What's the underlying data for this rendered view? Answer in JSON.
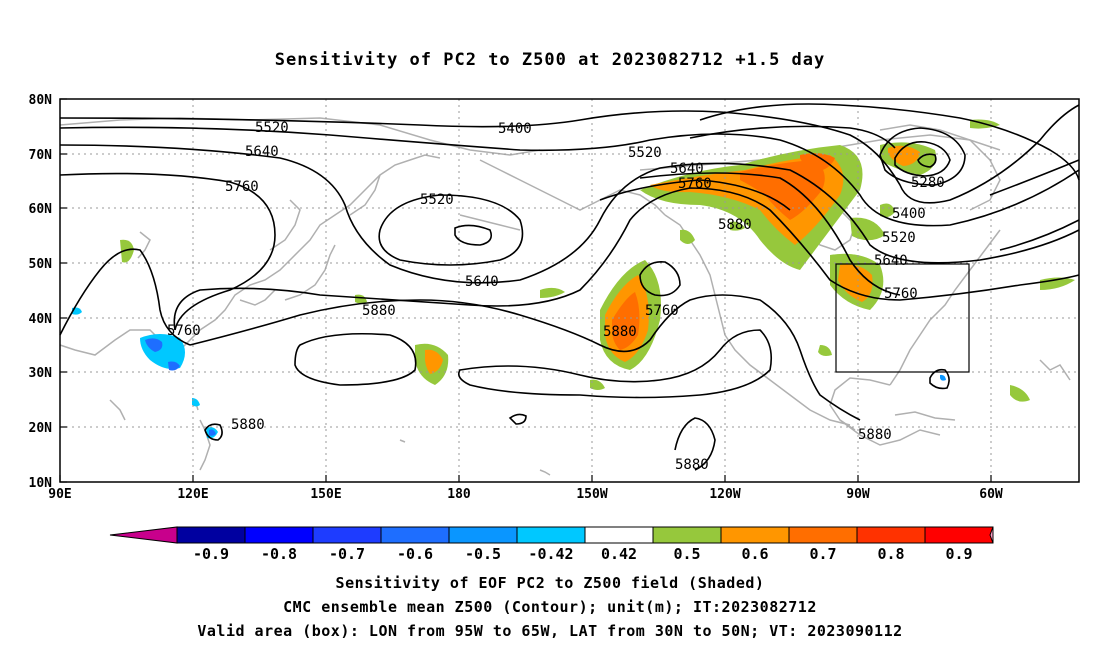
{
  "title": "Sensitivity of PC2 to Z500 at 2023082712 +1.5 day",
  "lat_labels": [
    "80N",
    "70N",
    "60N",
    "50N",
    "40N",
    "30N",
    "20N",
    "10N"
  ],
  "lon_labels": [
    "90E",
    "120E",
    "150E",
    "180",
    "150W",
    "120W",
    "90W",
    "60W"
  ],
  "contour_labels": [
    {
      "text": "5400",
      "id": "c5400a"
    },
    {
      "text": "5520",
      "id": "c5520a"
    },
    {
      "text": "5640",
      "id": "c5640a"
    },
    {
      "text": "5760",
      "id": "c5760a"
    },
    {
      "text": "5520",
      "id": "c5520b"
    },
    {
      "text": "5520",
      "id": "c5520c"
    },
    {
      "text": "5640",
      "id": "c5640b"
    },
    {
      "text": "5760",
      "id": "c5760b"
    },
    {
      "text": "5880",
      "id": "c5880a"
    },
    {
      "text": "5640",
      "id": "c5640c"
    },
    {
      "text": "5880",
      "id": "c5880b"
    },
    {
      "text": "5760",
      "id": "c5760c"
    },
    {
      "text": "5880",
      "id": "c5880c"
    },
    {
      "text": "5760",
      "id": "c5760d"
    },
    {
      "text": "5880",
      "id": "c5880d"
    },
    {
      "text": "5880",
      "id": "c5880e"
    },
    {
      "text": "5280",
      "id": "c5280a"
    },
    {
      "text": "5400",
      "id": "c5400b"
    },
    {
      "text": "5520",
      "id": "c5520d"
    },
    {
      "text": "5640",
      "id": "c5640d"
    },
    {
      "text": "5760",
      "id": "c5760e"
    },
    {
      "text": "5880",
      "id": "c5880f"
    }
  ],
  "colorbar": {
    "labels": [
      "-0.9",
      "-0.8",
      "-0.7",
      "-0.6",
      "-0.5",
      "-0.42",
      "0.42",
      "0.5",
      "0.6",
      "0.7",
      "0.8",
      "0.9"
    ],
    "colors": [
      "#0000a0",
      "#0000ff",
      "#1e3cff",
      "#1e6eff",
      "#0a96ff",
      "#00c8ff",
      "#ffffff",
      "#96c83c",
      "#ff9600",
      "#ff6e00",
      "#ff3200",
      "#ff0000"
    ],
    "low_end_color": "#c8008c",
    "high_end_color": "#ffa0c8"
  },
  "captions": {
    "line1": "Sensitivity of EOF PC2 to Z500 field (Shaded)",
    "line2": "CMC ensemble mean Z500 (Contour); unit(m); IT:2023082712",
    "line3": "Valid area (box): LON from 95W to 65W, LAT from 30N to 50N; VT: 2023090112"
  },
  "valid_box": {
    "lon_min": "95W",
    "lon_max": "65W",
    "lat_min": "30N",
    "lat_max": "50N"
  }
}
